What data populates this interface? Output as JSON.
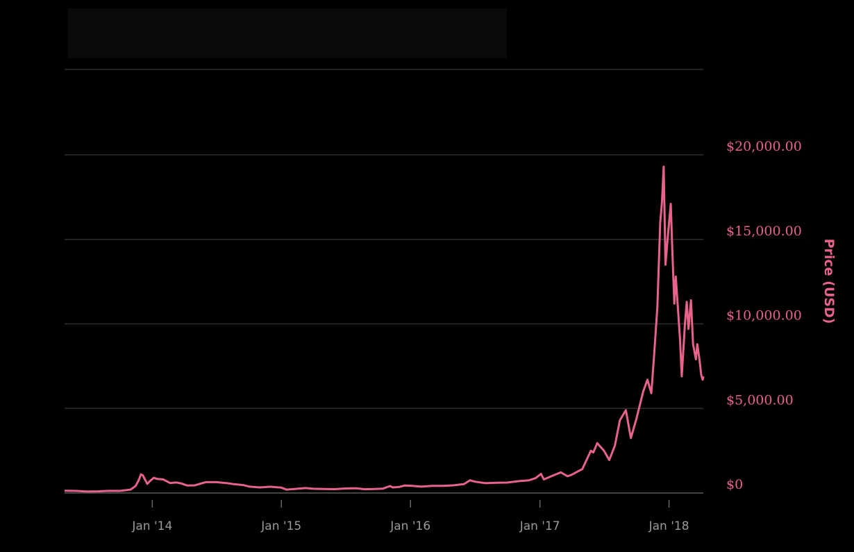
{
  "chart_data": {
    "type": "line",
    "title": "",
    "xlabel": "",
    "ylabel": "Price (USD)",
    "ylim": [
      -500,
      25000
    ],
    "xlim": [
      "2013-04-28",
      "2018-04-08"
    ],
    "grid": true,
    "line_color": "#e8638c",
    "tick_color": "#e8638c",
    "y_ticks": [
      {
        "value": 0,
        "label": "$0"
      },
      {
        "value": 5000,
        "label": "$5,000.00"
      },
      {
        "value": 10000,
        "label": "$10,000.00"
      },
      {
        "value": 15000,
        "label": "$15,000.00"
      },
      {
        "value": 20000,
        "label": "$20,000.00"
      }
    ],
    "x_ticks": [
      {
        "date": "2014-01-01",
        "label": "Jan '14"
      },
      {
        "date": "2015-01-01",
        "label": "Jan '15"
      },
      {
        "date": "2016-01-01",
        "label": "Jan '16"
      },
      {
        "date": "2017-01-01",
        "label": "Jan '17"
      },
      {
        "date": "2018-01-01",
        "label": "Jan '18"
      }
    ],
    "series": [
      {
        "points": [
          [
            "2013-04-28",
            135
          ],
          [
            "2013-06-01",
            122
          ],
          [
            "2013-07-01",
            88
          ],
          [
            "2013-08-01",
            97
          ],
          [
            "2013-09-01",
            128
          ],
          [
            "2013-10-01",
            123
          ],
          [
            "2013-10-20",
            170
          ],
          [
            "2013-11-01",
            205
          ],
          [
            "2013-11-15",
            420
          ],
          [
            "2013-11-24",
            780
          ],
          [
            "2013-11-30",
            1100
          ],
          [
            "2013-12-05",
            1050
          ],
          [
            "2013-12-18",
            540
          ],
          [
            "2013-12-25",
            700
          ],
          [
            "2014-01-05",
            900
          ],
          [
            "2014-01-15",
            830
          ],
          [
            "2014-02-01",
            800
          ],
          [
            "2014-02-20",
            590
          ],
          [
            "2014-03-10",
            620
          ],
          [
            "2014-03-25",
            560
          ],
          [
            "2014-04-10",
            440
          ],
          [
            "2014-05-01",
            450
          ],
          [
            "2014-06-01",
            640
          ],
          [
            "2014-07-01",
            640
          ],
          [
            "2014-08-01",
            580
          ],
          [
            "2014-08-20",
            520
          ],
          [
            "2014-09-15",
            470
          ],
          [
            "2014-10-01",
            380
          ],
          [
            "2014-11-01",
            330
          ],
          [
            "2014-12-01",
            370
          ],
          [
            "2015-01-01",
            315
          ],
          [
            "2015-01-15",
            200
          ],
          [
            "2015-02-01",
            225
          ],
          [
            "2015-03-10",
            290
          ],
          [
            "2015-04-01",
            250
          ],
          [
            "2015-05-01",
            235
          ],
          [
            "2015-06-01",
            225
          ],
          [
            "2015-07-01",
            265
          ],
          [
            "2015-08-01",
            280
          ],
          [
            "2015-08-25",
            220
          ],
          [
            "2015-09-15",
            230
          ],
          [
            "2015-10-15",
            260
          ],
          [
            "2015-11-04",
            410
          ],
          [
            "2015-11-12",
            330
          ],
          [
            "2015-12-01",
            360
          ],
          [
            "2015-12-15",
            440
          ],
          [
            "2016-01-01",
            430
          ],
          [
            "2016-02-01",
            375
          ],
          [
            "2016-03-01",
            420
          ],
          [
            "2016-04-01",
            418
          ],
          [
            "2016-05-01",
            450
          ],
          [
            "2016-06-01",
            530
          ],
          [
            "2016-06-17",
            750
          ],
          [
            "2016-07-01",
            670
          ],
          [
            "2016-08-01",
            580
          ],
          [
            "2016-09-01",
            605
          ],
          [
            "2016-10-01",
            615
          ],
          [
            "2016-11-01",
            700
          ],
          [
            "2016-12-01",
            750
          ],
          [
            "2016-12-20",
            880
          ],
          [
            "2017-01-04",
            1130
          ],
          [
            "2017-01-12",
            800
          ],
          [
            "2017-02-01",
            980
          ],
          [
            "2017-03-01",
            1220
          ],
          [
            "2017-03-20",
            990
          ],
          [
            "2017-04-01",
            1080
          ],
          [
            "2017-05-01",
            1420
          ],
          [
            "2017-05-25",
            2500
          ],
          [
            "2017-06-01",
            2400
          ],
          [
            "2017-06-12",
            2950
          ],
          [
            "2017-07-01",
            2500
          ],
          [
            "2017-07-16",
            1950
          ],
          [
            "2017-08-01",
            2800
          ],
          [
            "2017-08-15",
            4300
          ],
          [
            "2017-09-01",
            4900
          ],
          [
            "2017-09-15",
            3250
          ],
          [
            "2017-10-01",
            4400
          ],
          [
            "2017-10-20",
            6000
          ],
          [
            "2017-11-01",
            6700
          ],
          [
            "2017-11-12",
            5900
          ],
          [
            "2017-11-20",
            8200
          ],
          [
            "2017-11-29",
            11000
          ],
          [
            "2017-12-07",
            16000
          ],
          [
            "2017-12-12",
            17200
          ],
          [
            "2017-12-17",
            19300
          ],
          [
            "2017-12-22",
            13500
          ],
          [
            "2017-12-28",
            15000
          ],
          [
            "2018-01-06",
            17100
          ],
          [
            "2018-01-10",
            14500
          ],
          [
            "2018-01-16",
            11200
          ],
          [
            "2018-01-20",
            12800
          ],
          [
            "2018-02-01",
            9100
          ],
          [
            "2018-02-06",
            6900
          ],
          [
            "2018-02-15",
            10000
          ],
          [
            "2018-02-20",
            11300
          ],
          [
            "2018-02-25",
            9700
          ],
          [
            "2018-03-04",
            11400
          ],
          [
            "2018-03-10",
            8800
          ],
          [
            "2018-03-18",
            7900
          ],
          [
            "2018-03-22",
            8800
          ],
          [
            "2018-03-28",
            7900
          ],
          [
            "2018-04-02",
            7000
          ],
          [
            "2018-04-06",
            6700
          ],
          [
            "2018-04-08",
            6900
          ]
        ]
      }
    ]
  }
}
